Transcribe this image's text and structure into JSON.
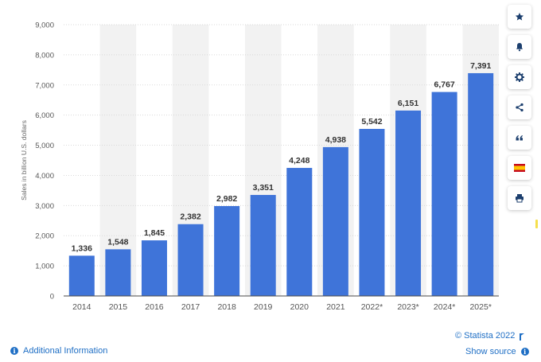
{
  "chart_data": {
    "type": "bar",
    "categories": [
      "2014",
      "2015",
      "2016",
      "2017",
      "2018",
      "2019",
      "2020",
      "2021",
      "2022*",
      "2023*",
      "2024*",
      "2025*"
    ],
    "values": [
      1336,
      1548,
      1845,
      2382,
      2982,
      3351,
      4248,
      4938,
      5542,
      6151,
      6767,
      7391
    ],
    "value_labels": [
      "1,336",
      "1,548",
      "1,845",
      "2,382",
      "2,982",
      "3,351",
      "4,248",
      "4,938",
      "5,542",
      "6,151",
      "6,767",
      "7,391"
    ],
    "ylabel": "Sales in billion U.S. dollars",
    "xlabel": "",
    "title": "",
    "ylim": [
      0,
      9000
    ],
    "yticks": [
      0,
      1000,
      2000,
      3000,
      4000,
      5000,
      6000,
      7000,
      8000,
      9000
    ],
    "ytick_labels": [
      "0",
      "1,000",
      "2,000",
      "3,000",
      "4,000",
      "5,000",
      "6,000",
      "7,000",
      "8,000",
      "9,000"
    ],
    "grid": true,
    "legend": "none",
    "colors": {
      "bar": "#3f74d9",
      "band": "#f2f2f2",
      "grid": "#d9d9d9",
      "axis": "#4a4a4a",
      "tick_text": "#555555",
      "value_text": "#333333"
    }
  },
  "toolbar": {
    "buttons": [
      {
        "name": "favorite-button",
        "icon": "star-icon"
      },
      {
        "name": "notification-button",
        "icon": "bell-icon"
      },
      {
        "name": "settings-button",
        "icon": "gear-icon"
      },
      {
        "name": "share-button",
        "icon": "share-icon"
      },
      {
        "name": "cite-button",
        "icon": "quote-icon"
      },
      {
        "name": "language-button",
        "icon": "spain-flag-icon"
      },
      {
        "name": "print-button",
        "icon": "printer-icon"
      }
    ],
    "icon_color": "#1c3f6e"
  },
  "footer": {
    "copyright": "© Statista 2022",
    "show_source": "Show source",
    "additional_info": "Additional Information"
  }
}
